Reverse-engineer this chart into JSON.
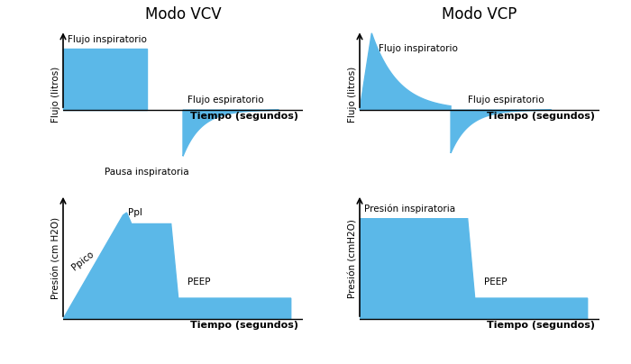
{
  "blue_color": "#5BB8E8",
  "background_color": "#FFFFFF",
  "title_vcv": "Modo VCV",
  "title_vcp": "Modo VCP",
  "xlabel": "Tiempo (segundos)",
  "ylabel_flujo": "Flujo (litros)",
  "ylabel_presion_vcv": "Presión (cm H2O)",
  "ylabel_presion_vcp": "Presión (cmH2O)",
  "label_flujo_insp": "Flujo inspiratorio",
  "label_flujo_esp": "Flujo espiratorio",
  "label_pausa": "Pausa inspiratoria",
  "label_ppico": "Ppico",
  "label_ppl": "Ppl",
  "label_peep_vcv": "PEEP",
  "label_peep_vcp": "PEEP",
  "label_presion_insp": "Presión inspiratoria",
  "fontsize_title": 12,
  "fontsize_labels": 7.5,
  "fontsize_axis": 7.5,
  "fontsize_xlabel": 8
}
